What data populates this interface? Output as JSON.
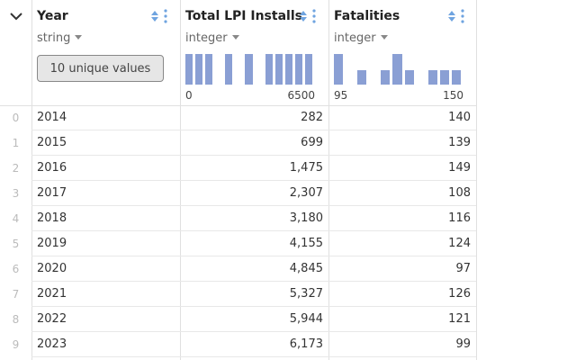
{
  "columns": {
    "year": {
      "name": "Year",
      "type": "string",
      "unique_label": "10 unique values"
    },
    "lpi": {
      "name": "Total LPI Installs",
      "type": "integer",
      "hist_min": "0",
      "hist_max": "6500",
      "hist": [
        1,
        1,
        1,
        0,
        1,
        0,
        1,
        0,
        1,
        1,
        1,
        1,
        1
      ]
    },
    "fat": {
      "name": "Fatalities",
      "type": "integer",
      "hist_min": "95",
      "hist_max": "150",
      "hist": [
        1,
        0,
        0.48,
        0,
        0.48,
        1,
        0.48,
        0,
        0.48,
        0.48,
        0.48
      ]
    }
  },
  "rows": [
    {
      "idx": "0",
      "year": "2014",
      "lpi": "282",
      "fat": "140"
    },
    {
      "idx": "1",
      "year": "2015",
      "lpi": "699",
      "fat": "139"
    },
    {
      "idx": "2",
      "year": "2016",
      "lpi": "1,475",
      "fat": "149"
    },
    {
      "idx": "3",
      "year": "2017",
      "lpi": "2,307",
      "fat": "108"
    },
    {
      "idx": "4",
      "year": "2018",
      "lpi": "3,180",
      "fat": "116"
    },
    {
      "idx": "5",
      "year": "2019",
      "lpi": "4,155",
      "fat": "124"
    },
    {
      "idx": "6",
      "year": "2020",
      "lpi": "4,845",
      "fat": "97"
    },
    {
      "idx": "7",
      "year": "2021",
      "lpi": "5,327",
      "fat": "126"
    },
    {
      "idx": "8",
      "year": "2022",
      "lpi": "5,944",
      "fat": "121"
    },
    {
      "idx": "9",
      "year": "2023",
      "lpi": "6,173",
      "fat": "99"
    }
  ],
  "colors": {
    "accent": "#5b8dd9",
    "hist_bar": "#8a9fd4"
  }
}
